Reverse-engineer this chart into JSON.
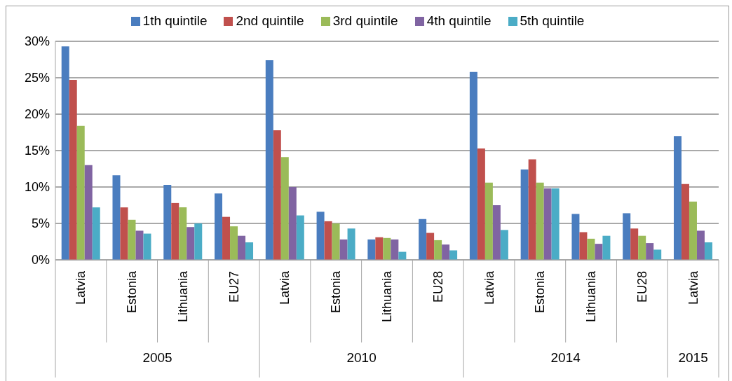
{
  "chart_data": {
    "type": "bar",
    "categories": [
      "Latvia",
      "Estonia",
      "Lithuania",
      "EU27",
      "Latvia",
      "Estonia",
      "Lithuania",
      "EU28",
      "Latvia",
      "Estonia",
      "Lithuania",
      "EU28",
      "Latvia"
    ],
    "series": [
      {
        "name": "1th quintile",
        "color": "#4a7dbf",
        "values": [
          29.3,
          11.6,
          10.3,
          9.1,
          27.4,
          6.6,
          2.8,
          5.6,
          25.8,
          12.4,
          6.3,
          6.4,
          17.0
        ]
      },
      {
        "name": "2nd quintile",
        "color": "#c0504d",
        "values": [
          24.7,
          7.2,
          7.8,
          5.9,
          17.8,
          5.3,
          3.1,
          3.7,
          15.3,
          13.8,
          3.8,
          4.3,
          10.4
        ]
      },
      {
        "name": "3rd quintile",
        "color": "#9bbb59",
        "values": [
          18.4,
          5.5,
          7.2,
          4.6,
          14.1,
          5.0,
          3.0,
          2.7,
          10.6,
          10.6,
          2.9,
          3.3,
          8.0
        ]
      },
      {
        "name": "4th quintile",
        "color": "#8064a2",
        "values": [
          13.0,
          4.0,
          4.5,
          3.3,
          10.0,
          2.8,
          2.8,
          2.1,
          7.5,
          9.8,
          2.2,
          2.3,
          4.0
        ]
      },
      {
        "name": "5th quintile",
        "color": "#4bacc6",
        "values": [
          7.2,
          3.6,
          5.0,
          2.4,
          6.1,
          4.3,
          1.1,
          1.3,
          4.1,
          9.8,
          3.3,
          1.4,
          2.4
        ]
      }
    ],
    "ylim": [
      0,
      30
    ],
    "yticks": [
      {
        "value": 0,
        "label": "0%"
      },
      {
        "value": 5,
        "label": "5%"
      },
      {
        "value": 10,
        "label": "10%"
      },
      {
        "value": 15,
        "label": "15%"
      },
      {
        "value": 20,
        "label": "20%"
      },
      {
        "value": 25,
        "label": "25%"
      },
      {
        "value": 30,
        "label": "30%"
      }
    ],
    "annotations": [
      "2005",
      "2010",
      "2014",
      "2015"
    ],
    "grid": "y",
    "legend": "top"
  }
}
